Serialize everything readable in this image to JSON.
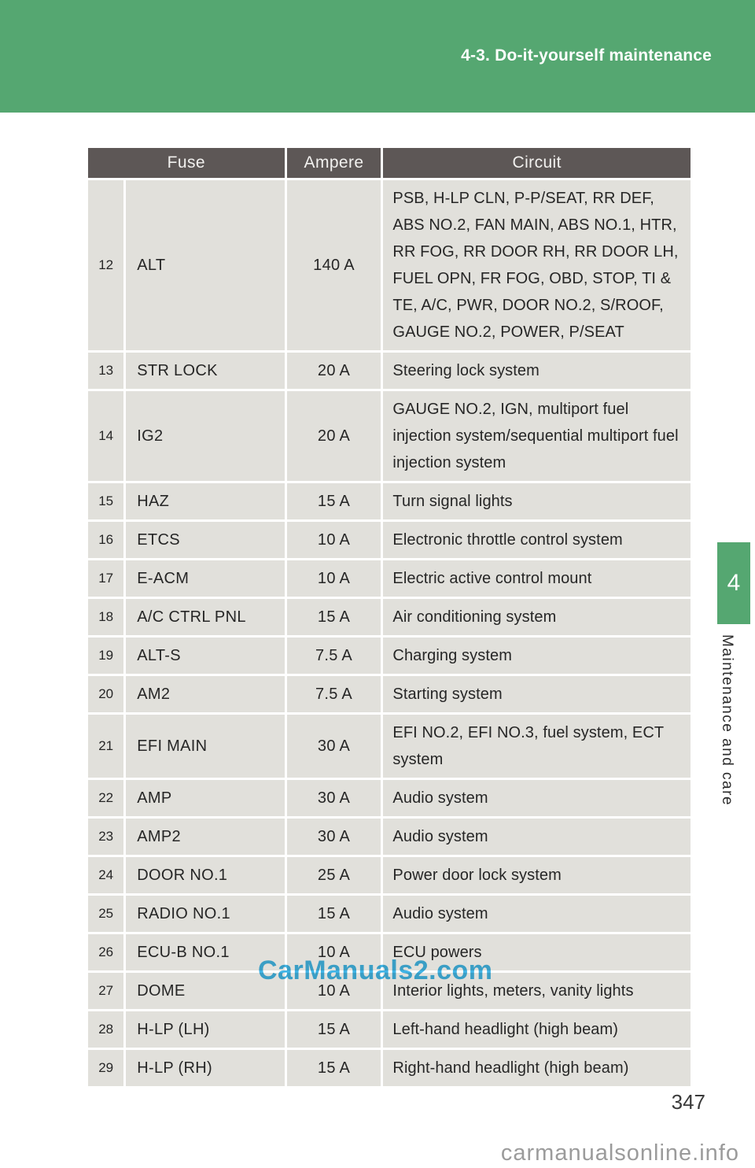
{
  "colors": {
    "brand_green": "#55a771",
    "table_header_bg": "#5d5756",
    "table_cell_bg": "#e1e0db",
    "watermark_blue": "#41b4e6",
    "watermark_gray": "#9b9b9b"
  },
  "header": {
    "title": "4-3. Do-it-yourself maintenance"
  },
  "sidebar": {
    "chapter_number": "4",
    "chapter_label": "Maintenance and care"
  },
  "table": {
    "headers": {
      "fuse": "Fuse",
      "ampere": "Ampere",
      "circuit": "Circuit"
    },
    "rows": [
      {
        "no": "12",
        "fuse": "ALT",
        "ampere": "140 A",
        "circuit": "PSB, H-LP CLN, P-P/SEAT, RR DEF, ABS NO.2, FAN MAIN, ABS NO.1, HTR, RR FOG, RR DOOR RH, RR DOOR LH, FUEL OPN, FR FOG, OBD, STOP, TI & TE, A/C, PWR, DOOR NO.2, S/ROOF, GAUGE NO.2, POWER, P/SEAT"
      },
      {
        "no": "13",
        "fuse": "STR LOCK",
        "ampere": "20 A",
        "circuit": "Steering lock system"
      },
      {
        "no": "14",
        "fuse": "IG2",
        "ampere": "20 A",
        "circuit": "GAUGE NO.2, IGN, multiport fuel injection system/sequential multiport fuel injection system"
      },
      {
        "no": "15",
        "fuse": "HAZ",
        "ampere": "15 A",
        "circuit": "Turn signal lights"
      },
      {
        "no": "16",
        "fuse": "ETCS",
        "ampere": "10 A",
        "circuit": "Electronic throttle control system"
      },
      {
        "no": "17",
        "fuse": "E-ACM",
        "ampere": "10 A",
        "circuit": "Electric active control mount"
      },
      {
        "no": "18",
        "fuse": "A/C CTRL PNL",
        "ampere": "15 A",
        "circuit": "Air conditioning system"
      },
      {
        "no": "19",
        "fuse": "ALT-S",
        "ampere": "7.5 A",
        "circuit": "Charging system"
      },
      {
        "no": "20",
        "fuse": "AM2",
        "ampere": "7.5 A",
        "circuit": "Starting system"
      },
      {
        "no": "21",
        "fuse": "EFI MAIN",
        "ampere": "30 A",
        "circuit": "EFI NO.2, EFI NO.3, fuel system, ECT system"
      },
      {
        "no": "22",
        "fuse": "AMP",
        "ampere": "30 A",
        "circuit": "Audio system"
      },
      {
        "no": "23",
        "fuse": "AMP2",
        "ampere": "30 A",
        "circuit": "Audio system"
      },
      {
        "no": "24",
        "fuse": "DOOR NO.1",
        "ampere": "25 A",
        "circuit": "Power door lock system"
      },
      {
        "no": "25",
        "fuse": "RADIO NO.1",
        "ampere": "15 A",
        "circuit": "Audio system"
      },
      {
        "no": "26",
        "fuse": "ECU-B NO.1",
        "ampere": "10 A",
        "circuit": "ECU powers"
      },
      {
        "no": "27",
        "fuse": "DOME",
        "ampere": "10 A",
        "circuit": "Interior lights, meters, vanity lights"
      },
      {
        "no": "28",
        "fuse": "H-LP (LH)",
        "ampere": "15 A",
        "circuit": "Left-hand headlight (high beam)"
      },
      {
        "no": "29",
        "fuse": "H-LP (RH)",
        "ampere": "15 A",
        "circuit": "Right-hand headlight (high beam)"
      }
    ]
  },
  "watermarks": {
    "center": "CarManuals2.com",
    "bottom": "carmanualsonline.info"
  },
  "footer": {
    "page_number": "347"
  }
}
